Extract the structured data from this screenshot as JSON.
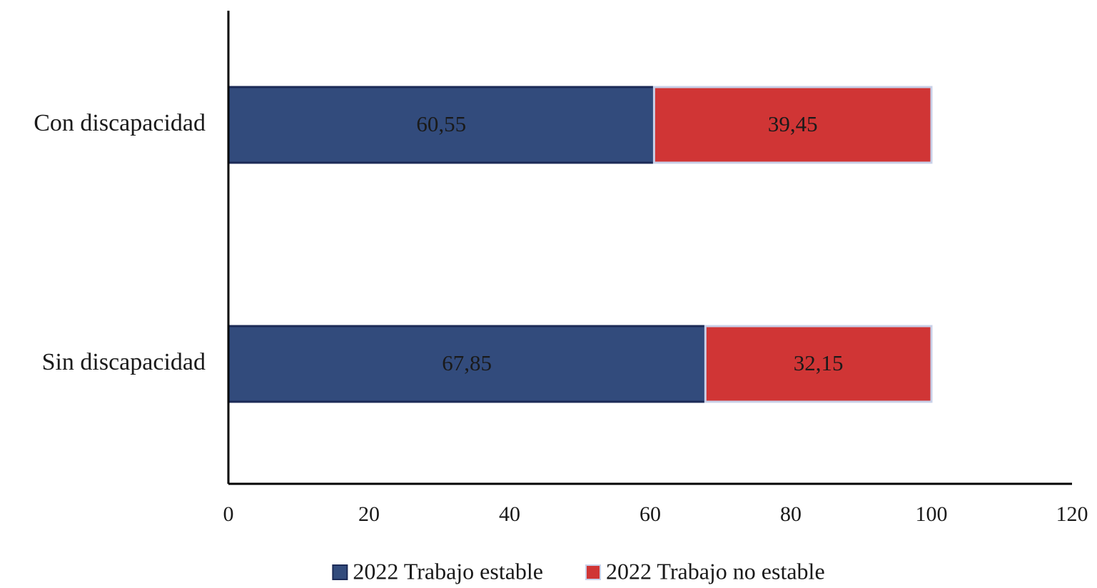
{
  "chart_data": {
    "type": "stacked_barh",
    "categories": [
      "Con discapacidad",
      "Sin discapacidad"
    ],
    "series": [
      {
        "name": "2022 Trabajo estable",
        "color": "#324b7c",
        "values": [
          60.55,
          67.85
        ],
        "value_labels": [
          "60,55",
          "67,85"
        ]
      },
      {
        "name": "2022 Trabajo no estable",
        "color": "#d03535",
        "values": [
          39.45,
          32.15
        ],
        "value_labels": [
          "39,45",
          "32,15"
        ]
      }
    ],
    "xlim": [
      0,
      120
    ],
    "xticks": [
      0,
      20,
      40,
      60,
      80,
      100,
      120
    ],
    "grid": false,
    "legend": "bottom"
  }
}
